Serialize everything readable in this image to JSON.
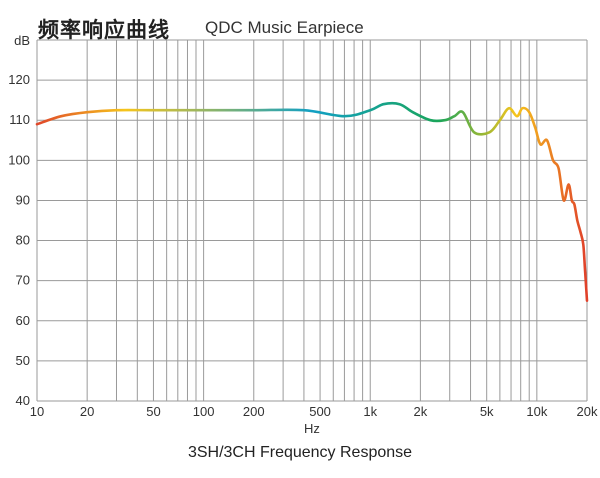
{
  "header": {
    "title_zh": "频率响应曲线",
    "title_en": "QDC Music Earpiece"
  },
  "caption": "3SH/3CH Frequency Response",
  "chart_data": {
    "type": "line",
    "title": "频率响应曲线",
    "subtitle": "QDC Music Earpiece",
    "xlabel": "Hz",
    "ylabel": "dB",
    "x_scale": "log",
    "xlim": [
      10,
      20000
    ],
    "ylim": [
      40,
      130
    ],
    "grid": true,
    "y_ticks": [
      40,
      50,
      60,
      70,
      80,
      90,
      100,
      110,
      120
    ],
    "y_ticks_labels": [
      "40",
      "50",
      "60",
      "70",
      "80",
      "90",
      "100",
      "110",
      "120"
    ],
    "x_tick_labels": [
      {
        "value": 10,
        "label": "10"
      },
      {
        "value": 20,
        "label": "20"
      },
      {
        "value": 50,
        "label": "50"
      },
      {
        "value": 100,
        "label": "100"
      },
      {
        "value": 200,
        "label": "200"
      },
      {
        "value": 500,
        "label": "500"
      },
      {
        "value": 1000,
        "label": "1k"
      },
      {
        "value": 2000,
        "label": "2k"
      },
      {
        "value": 5000,
        "label": "5k"
      },
      {
        "value": 10000,
        "label": "10k"
      },
      {
        "value": 20000,
        "label": "20k"
      }
    ],
    "series": [
      {
        "x": [
          10,
          14,
          20,
          30,
          50,
          100,
          200,
          400,
          700,
          1000,
          1200,
          1500,
          1800,
          2300,
          2800,
          3200,
          3600,
          4200,
          5200,
          6000,
          6800,
          7600,
          8200,
          9000,
          9800,
          10500,
          11500,
          12500,
          13500,
          14500,
          15500,
          16200,
          16800,
          17500,
          18300,
          19000,
          19500,
          20000
        ],
        "y": [
          109,
          111,
          112,
          112.5,
          112.5,
          112.5,
          112.5,
          112.5,
          111,
          112.5,
          114,
          114,
          112,
          110,
          110,
          111,
          112,
          107,
          107,
          110,
          113,
          111,
          113,
          112,
          108,
          104,
          105,
          100,
          98,
          90,
          94,
          90,
          89,
          85,
          82,
          79,
          72,
          65
        ]
      }
    ],
    "colors": {
      "grid": "#9a9a9a",
      "axis_text": "#333333",
      "line_gradient": [
        "#e0472a",
        "#f6c51c",
        "#12a0c4",
        "#1aa55a",
        "#f6c51c",
        "#e0402a"
      ]
    }
  }
}
